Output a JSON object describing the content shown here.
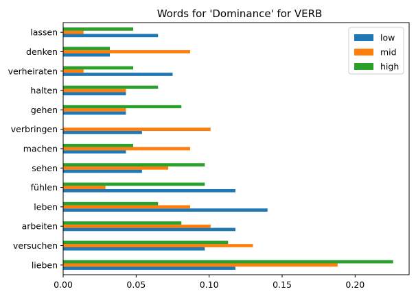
{
  "chart_data": {
    "type": "bar",
    "orientation": "horizontal",
    "title": "Words for 'Dominance' for VERB",
    "xlabel": "",
    "ylabel": "",
    "categories": [
      "lieben",
      "versuchen",
      "arbeiten",
      "leben",
      "fühlen",
      "sehen",
      "machen",
      "verbringen",
      "gehen",
      "halten",
      "verheiraten",
      "denken",
      "lassen"
    ],
    "series": [
      {
        "name": "low",
        "color": "#1f77b4",
        "values": [
          0.118,
          0.097,
          0.118,
          0.14,
          0.118,
          0.054,
          0.043,
          0.054,
          0.043,
          0.043,
          0.075,
          0.032,
          0.065
        ]
      },
      {
        "name": "mid",
        "color": "#ff7f0e",
        "values": [
          0.188,
          0.13,
          0.101,
          0.087,
          0.029,
          0.072,
          0.087,
          0.101,
          0.043,
          0.043,
          0.014,
          0.087,
          0.014
        ]
      },
      {
        "name": "high",
        "color": "#2ca02c",
        "values": [
          0.226,
          0.113,
          0.081,
          0.065,
          0.097,
          0.097,
          0.048,
          0.0,
          0.081,
          0.065,
          0.048,
          0.032,
          0.048
        ]
      }
    ],
    "xlim": [
      0,
      0.237
    ],
    "xticks": [
      "0.00",
      "0.05",
      "0.10",
      "0.15",
      "0.20"
    ],
    "xtick_values": [
      0,
      0.05,
      0.1,
      0.15,
      0.2
    ],
    "legend": {
      "placement": "top-right",
      "entries": [
        "low",
        "mid",
        "high"
      ]
    },
    "grid": false
  }
}
